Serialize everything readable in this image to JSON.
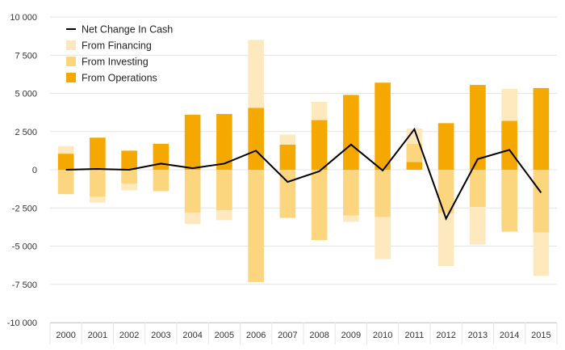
{
  "chart_data": {
    "type": "bar",
    "title": "",
    "xlabel": "",
    "ylabel": "",
    "ylim": [
      -10000,
      10000
    ],
    "yticks": [
      -10000,
      -7500,
      -5000,
      -2500,
      0,
      2500,
      5000,
      7500,
      10000
    ],
    "ytick_labels": [
      "-10 000",
      "-7 500",
      "-5 000",
      "-2 500",
      "0",
      "2 500",
      "5 000",
      "7 500",
      "10 000"
    ],
    "grid": "horizontal",
    "stacked": true,
    "legend_position": "top-left",
    "categories": [
      "2000",
      "2001",
      "2002",
      "2003",
      "2004",
      "2005",
      "2006",
      "2007",
      "2008",
      "2009",
      "2010",
      "2011",
      "2012",
      "2013",
      "2014",
      "2015"
    ],
    "series": [
      {
        "name": "From Operations",
        "kind": "bar",
        "color": "#f5a800",
        "values": [
          1050,
          2100,
          1250,
          1700,
          3600,
          3650,
          4050,
          1650,
          3250,
          4900,
          5700,
          500,
          3050,
          5550,
          3200,
          5350
        ]
      },
      {
        "name": "From Investing",
        "kind": "bar",
        "color": "#fcd57f",
        "values": [
          -1600,
          -1750,
          -900,
          -1400,
          -2800,
          -2650,
          -7350,
          -3150,
          -4600,
          -3000,
          -3100,
          1200,
          -2850,
          -2450,
          -4050,
          -4100
        ]
      },
      {
        "name": "From Financing",
        "kind": "bar",
        "color": "#fee9bf",
        "values": [
          500,
          -400,
          -450,
          0,
          -750,
          -650,
          4450,
          650,
          1200,
          -400,
          -2750,
          1000,
          -3450,
          -2450,
          2100,
          -2850
        ]
      },
      {
        "name": "Net Change In Cash",
        "kind": "line",
        "color": "#000000",
        "values": [
          0,
          50,
          0,
          400,
          100,
          400,
          1250,
          -800,
          -100,
          1650,
          -50,
          2650,
          -3200,
          700,
          1300,
          -1500
        ]
      }
    ]
  }
}
